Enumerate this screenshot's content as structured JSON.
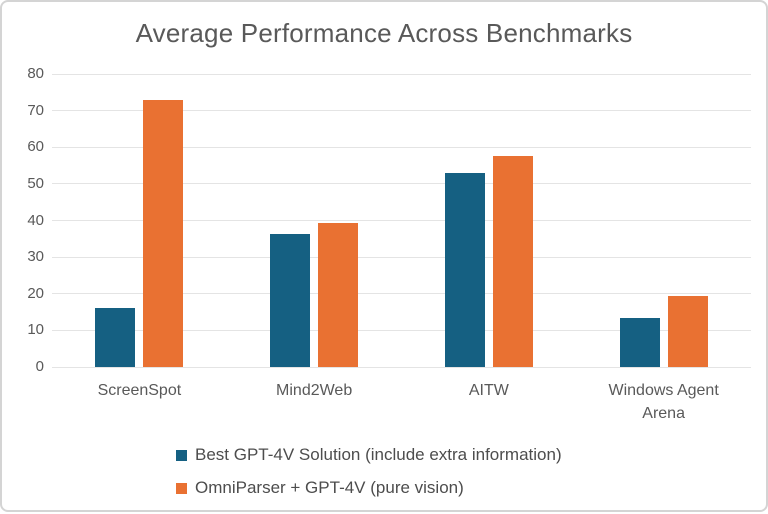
{
  "chart_data": {
    "type": "bar",
    "title": "Average Performance Across Benchmarks",
    "categories": [
      "ScreenSpot",
      "Mind2Web",
      "AITW",
      "Windows Agent Arena"
    ],
    "series": [
      {
        "name": "Best GPT-4V Solution (include extra information)",
        "color": "#156082",
        "values": [
          16.2,
          36.4,
          52.9,
          13.3
        ]
      },
      {
        "name": "OmniParser + GPT-4V (pure vision)",
        "color": "#E97132",
        "values": [
          73.0,
          39.4,
          57.7,
          19.5
        ]
      }
    ],
    "xlabel": "",
    "ylabel": "",
    "ylim": [
      0,
      80
    ],
    "yticks": [
      0,
      10,
      20,
      30,
      40,
      50,
      60,
      70,
      80
    ],
    "grid": true,
    "legend_position": "bottom-left",
    "colors": {
      "text": "#595959",
      "gridline": "#e4e4e4",
      "border": "#d4d4d4",
      "background": "#ffffff"
    }
  }
}
